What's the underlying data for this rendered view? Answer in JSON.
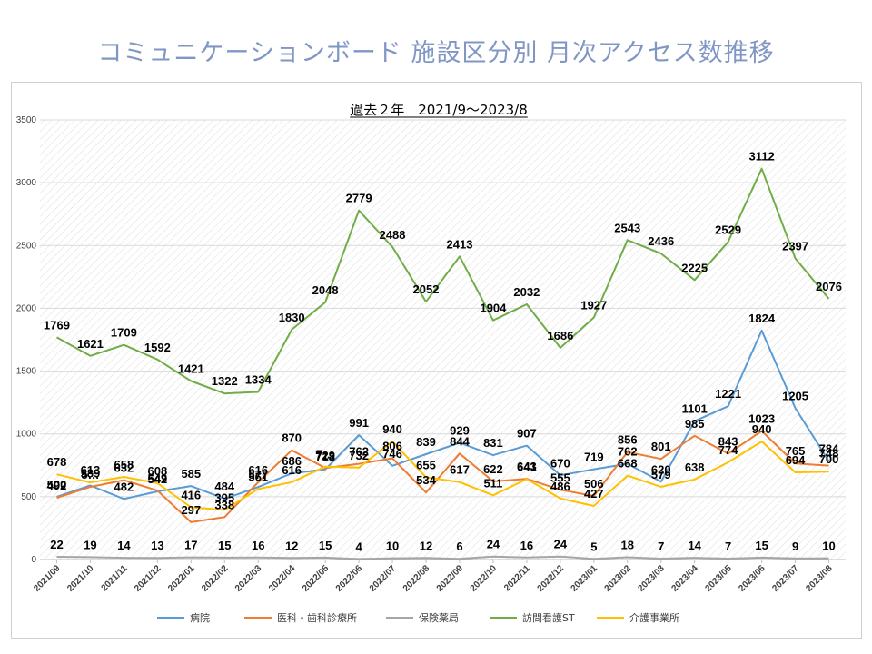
{
  "title": "コミュニケーションボード 施設区分別 月次アクセス数推移",
  "title_color": "#8096c4",
  "chart_data": {
    "type": "line",
    "title": "過去２年　2021/9～2023/8",
    "xlabel": "",
    "ylabel": "",
    "ylim": [
      0,
      3500
    ],
    "yticks": [
      0,
      500,
      1000,
      1500,
      2000,
      2500,
      3000,
      3500
    ],
    "grid": true,
    "legend_position": "bottom",
    "categories": [
      "2021/09",
      "2021/10",
      "2021/11",
      "2021/12",
      "2022/01",
      "2022/02",
      "2022/03",
      "2022/04",
      "2022/05",
      "2022/06",
      "2022/07",
      "2022/08",
      "2022/09",
      "2022/10",
      "2022/11",
      "2022/12",
      "2023/01",
      "2023/02",
      "2023/03",
      "2023/04",
      "2023/05",
      "2023/06",
      "2023/07",
      "2023/08"
    ],
    "series": [
      {
        "name": "病院",
        "color": "#5b9bd5",
        "values": [
          500,
          589,
          482,
          542,
          585,
          484,
          577,
          686,
          718,
          991,
          746,
          839,
          929,
          831,
          907,
          670,
          719,
          762,
          620,
          1101,
          1221,
          1824,
          1205,
          784
        ],
        "labels": [
          "500",
          "589",
          "482",
          "542",
          "585",
          "484",
          "577",
          "686",
          "718",
          "991",
          "746",
          "839",
          "929",
          "831",
          "907",
          "670",
          "719",
          "762",
          "620",
          "1101",
          "1221",
          "1824",
          "1205",
          "784"
        ]
      },
      {
        "name": "医科・歯科診療所",
        "color": "#ed7d31",
        "values": [
          492,
          578,
          632,
          549,
          297,
          338,
          616,
          870,
          729,
          762,
          806,
          534,
          844,
          622,
          643,
          555,
          506,
          856,
          801,
          985,
          843,
          1023,
          765,
          748
        ],
        "labels": [
          "492",
          "5…",
          "632",
          "549",
          "297",
          "338",
          "616",
          "870",
          "729",
          "762",
          "806",
          "534",
          "844",
          "622",
          "643",
          "555",
          "506",
          "856",
          "801",
          "985",
          "843",
          "1023",
          "765",
          "748"
        ]
      },
      {
        "name": "保険薬局",
        "color": "#a5a5a5",
        "values": [
          22,
          19,
          14,
          13,
          17,
          15,
          16,
          12,
          15,
          4,
          10,
          12,
          6,
          24,
          16,
          24,
          5,
          18,
          7,
          14,
          7,
          15,
          9,
          10
        ],
        "labels": [
          "22",
          "19",
          "14",
          "13",
          "17",
          "15",
          "16",
          "12",
          "15",
          "4",
          "10",
          "12",
          "6",
          "24",
          "16",
          "24",
          "5",
          "18",
          "7",
          "14",
          "7",
          "15",
          "9",
          "10"
        ]
      },
      {
        "name": "訪問看護ST",
        "color": "#70ad47",
        "values": [
          1769,
          1621,
          1709,
          1592,
          1421,
          1322,
          1334,
          1830,
          2048,
          2779,
          2488,
          2052,
          2413,
          1904,
          2032,
          1686,
          1927,
          2543,
          2436,
          2225,
          2529,
          3112,
          2397,
          2076
        ],
        "labels": [
          "1769",
          "1621",
          "1709",
          "1592",
          "1421",
          "1322",
          "1334",
          "1830",
          "2048",
          "2779",
          "2488",
          "2052",
          "2413",
          "1904",
          "2032",
          "1686",
          "1927",
          "2543",
          "2436",
          "2225",
          "2529",
          "3112",
          "2397",
          "2076"
        ]
      },
      {
        "name": "介護事業所",
        "color": "#ffc000",
        "values": [
          678,
          613,
          658,
          608,
          416,
          395,
          561,
          616,
          740,
          732,
          940,
          655,
          617,
          511,
          641,
          486,
          427,
          668,
          579,
          638,
          774,
          940,
          694,
          700
        ],
        "labels": [
          "678",
          "613",
          "658",
          "608",
          "416",
          "395",
          "561",
          "616",
          "7…",
          "732",
          "940",
          "655",
          "617",
          "511",
          "641",
          "486",
          "427",
          "668",
          "579",
          "638",
          "774",
          "940",
          "694",
          "700"
        ]
      }
    ]
  }
}
